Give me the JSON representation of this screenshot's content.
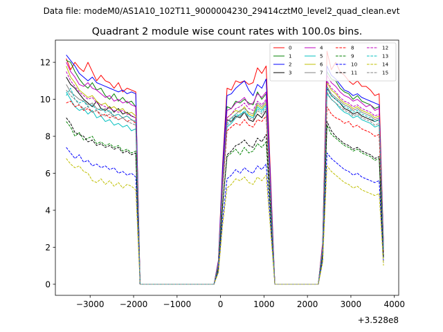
{
  "suptitle": "Data file: modeM0/AS1A10_102T11_9000004230_29414cztM0_level2_quad_clean.evt",
  "chart_data": {
    "type": "line",
    "title": "Quadrant 2 module wise count rates with 100.0s bins.",
    "xlabel": "",
    "ylabel": "",
    "offset_text": "+3.528e8",
    "xlim": [
      -3800,
      4100
    ],
    "ylim": [
      -0.6,
      13.2
    ],
    "x_ticks": [
      -3000,
      -2000,
      -1000,
      0,
      1000,
      2000,
      3000,
      4000
    ],
    "x_tick_labels": [
      "−3000",
      "−2000",
      "−1000",
      "0",
      "1000",
      "2000",
      "3000",
      "4000"
    ],
    "y_ticks": [
      0,
      2,
      4,
      6,
      8,
      10,
      12
    ],
    "y_tick_labels": [
      "0",
      "2",
      "4",
      "6",
      "8",
      "10",
      "12"
    ],
    "grid": false,
    "legend_position": "top-right",
    "segments": [
      {
        "x_start": -3550,
        "x_end": -1950
      },
      {
        "x_start": 150,
        "x_end": 1050
      },
      {
        "x_start": 2450,
        "x_end": 3750
      }
    ],
    "gap_x": [
      -1850,
      -1750,
      -1650,
      -1550,
      -1450,
      -1350,
      -1250,
      -1150,
      -1050,
      -950,
      -850,
      -750,
      -650,
      -550,
      -450,
      -350,
      -250,
      -150,
      1250,
      1350,
      1450,
      1550,
      1650,
      1750,
      1850,
      1950,
      2050,
      2150,
      2250
    ],
    "rise_x": [
      -50,
      50
    ],
    "rise_fraction": [
      0.12,
      0.62
    ],
    "rise2_x": [
      2350
    ],
    "rise2_fraction": [
      0.18
    ],
    "fall_x": [
      3750
    ],
    "fall_value_fraction": 0.22,
    "series": [
      {
        "name": "0",
        "color": "#ff0000",
        "dash": "solid",
        "seg_values": [
          [
            12.2,
            11.6,
            12.0,
            11.7,
            11.5,
            12.0,
            11.5,
            11.0,
            11.3,
            11.0,
            10.9,
            10.6,
            10.9,
            10.4,
            10.6,
            10.5,
            10.4
          ],
          [
            10.6,
            10.5,
            11.0,
            10.9,
            11.0,
            10.8,
            10.9,
            11.7,
            11.4,
            11.8
          ],
          [
            12.6,
            11.6,
            12.0,
            11.5,
            11.3,
            11.0,
            10.8,
            11.0,
            10.7,
            10.7,
            10.5,
            10.2,
            10.3,
            10.1
          ]
        ]
      },
      {
        "name": "1",
        "color": "#008000",
        "dash": "solid",
        "seg_values": [
          [
            12.1,
            12.0,
            11.5,
            11.1,
            10.8,
            10.6,
            10.9,
            10.5,
            10.6,
            10.2,
            10.0,
            10.3,
            9.9,
            10.1,
            9.8,
            9.9,
            9.6
          ],
          [
            9.6,
            9.5,
            9.9,
            9.8,
            10.0,
            9.8,
            9.7,
            10.4,
            10.0,
            10.3
          ],
          [
            11.5,
            11.1,
            11.0,
            10.6,
            10.4,
            10.3,
            10.0,
            10.2,
            9.9,
            9.8,
            9.7,
            9.5,
            9.6,
            9.3
          ]
        ]
      },
      {
        "name": "2",
        "color": "#0000ff",
        "dash": "solid",
        "seg_values": [
          [
            12.4,
            12.1,
            11.8,
            11.4,
            11.2,
            11.0,
            11.2,
            10.9,
            10.8,
            10.7,
            10.6,
            10.5,
            10.4,
            10.5,
            10.3,
            10.4,
            10.3
          ],
          [
            10.2,
            10.3,
            10.6,
            10.8,
            11.0,
            10.5,
            10.2,
            10.8,
            10.6,
            11.1
          ],
          [
            11.8,
            11.3,
            11.1,
            10.8,
            10.5,
            10.4,
            10.2,
            10.3,
            10.1,
            10.0,
            9.9,
            9.8,
            9.7,
            9.4
          ]
        ]
      },
      {
        "name": "3",
        "color": "#000000",
        "dash": "solid",
        "seg_values": [
          [
            11.2,
            10.8,
            10.6,
            10.3,
            10.0,
            9.8,
            9.6,
            9.9,
            9.5,
            9.4,
            9.6,
            9.3,
            9.5,
            9.2,
            9.3,
            9.1,
            9.0
          ],
          [
            8.9,
            8.8,
            9.1,
            9.0,
            9.3,
            8.9,
            8.8,
            9.2,
            9.0,
            9.4
          ],
          [
            10.6,
            10.2,
            10.0,
            9.8,
            9.5,
            9.4,
            9.2,
            9.3,
            9.1,
            9.0,
            8.9,
            8.8,
            8.9,
            8.6
          ]
        ]
      },
      {
        "name": "4",
        "color": "#bf00bf",
        "dash": "solid",
        "seg_values": [
          [
            12.0,
            11.5,
            11.2,
            10.8,
            10.7,
            10.9,
            10.6,
            10.5,
            10.3,
            10.1,
            10.2,
            9.9,
            10.0,
            9.8,
            9.9,
            9.7,
            9.6
          ],
          [
            9.4,
            9.5,
            9.8,
            9.9,
            10.1,
            9.7,
            9.8,
            10.3,
            10.1,
            10.4
          ],
          [
            11.3,
            10.9,
            10.7,
            10.4,
            10.2,
            10.1,
            9.9,
            10.0,
            9.8,
            9.6,
            9.7,
            9.4,
            9.5,
            9.2
          ]
        ]
      },
      {
        "name": "5",
        "color": "#00bfbf",
        "dash": "solid",
        "seg_values": [
          [
            10.4,
            10.0,
            9.6,
            9.4,
            9.5,
            9.2,
            9.4,
            9.0,
            9.1,
            8.8,
            8.9,
            8.6,
            8.7,
            8.5,
            8.6,
            8.3,
            8.4
          ],
          [
            8.5,
            8.7,
            9.0,
            9.2,
            9.3,
            9.1,
            9.0,
            9.6,
            9.4,
            9.7
          ],
          [
            10.3,
            10.0,
            9.8,
            9.5,
            9.3,
            9.2,
            9.0,
            9.1,
            8.9,
            8.8,
            8.7,
            8.5,
            8.6,
            8.3
          ]
        ]
      },
      {
        "name": "6",
        "color": "#bfbf00",
        "dash": "solid",
        "seg_values": [
          [
            11.8,
            11.2,
            10.9,
            10.5,
            10.3,
            10.1,
            10.2,
            9.9,
            9.7,
            9.8,
            9.5,
            9.6,
            9.4,
            9.5,
            9.2,
            9.3,
            9.1
          ],
          [
            9.0,
            9.2,
            9.4,
            9.3,
            9.6,
            9.2,
            9.1,
            9.7,
            9.5,
            9.8
          ],
          [
            10.9,
            10.5,
            10.3,
            10.0,
            9.8,
            9.7,
            9.5,
            9.6,
            9.4,
            9.3,
            9.2,
            9.0,
            9.1,
            8.8
          ]
        ]
      },
      {
        "name": "7",
        "color": "#808080",
        "dash": "solid",
        "seg_values": [
          [
            10.8,
            10.4,
            10.2,
            10.0,
            9.9,
            9.7,
            9.8,
            9.5,
            9.4,
            9.5,
            9.3,
            9.1,
            9.2,
            9.0,
            9.1,
            8.9,
            8.8
          ],
          [
            8.8,
            9.0,
            9.2,
            9.4,
            9.5,
            9.3,
            9.2,
            9.8,
            9.6,
            9.9
          ],
          [
            10.7,
            10.3,
            10.1,
            9.9,
            9.7,
            9.6,
            9.4,
            9.5,
            9.3,
            9.2,
            9.1,
            8.9,
            9.0,
            8.7
          ]
        ]
      },
      {
        "name": "8",
        "color": "#ff0000",
        "dash": "dashed",
        "seg_values": [
          [
            9.8,
            9.9,
            9.6,
            9.7,
            9.4,
            9.5,
            9.3,
            9.4,
            9.1,
            9.2,
            9.0,
            9.1,
            8.9,
            9.0,
            8.8,
            8.9,
            8.7
          ],
          [
            8.3,
            8.5,
            8.7,
            8.6,
            8.9,
            8.6,
            8.5,
            8.9,
            8.8,
            9.1
          ],
          [
            9.6,
            9.2,
            9.0,
            8.9,
            8.7,
            8.8,
            8.5,
            8.6,
            8.4,
            8.3,
            8.2,
            8.0,
            8.1,
            7.8
          ]
        ]
      },
      {
        "name": "9",
        "color": "#008000",
        "dash": "dashed",
        "seg_values": [
          [
            8.8,
            8.5,
            8.0,
            8.2,
            7.8,
            7.9,
            8.0,
            7.6,
            7.7,
            7.5,
            7.6,
            7.4,
            7.5,
            7.2,
            7.3,
            7.1,
            7.2
          ],
          [
            6.9,
            7.1,
            7.3,
            7.0,
            7.4,
            7.1,
            7.2,
            7.6,
            7.4,
            7.7
          ],
          [
            8.6,
            8.1,
            7.9,
            7.7,
            7.5,
            7.4,
            7.2,
            7.3,
            7.1,
            7.0,
            6.9,
            6.7,
            6.8,
            6.5
          ]
        ]
      },
      {
        "name": "10",
        "color": "#0000ff",
        "dash": "dashed",
        "seg_values": [
          [
            7.4,
            7.1,
            6.8,
            7.0,
            6.6,
            6.7,
            6.4,
            6.5,
            6.3,
            6.4,
            6.2,
            6.3,
            6.0,
            6.1,
            5.9,
            6.0,
            5.8
          ],
          [
            5.7,
            5.9,
            6.2,
            6.0,
            6.3,
            6.1,
            6.0,
            6.4,
            6.2,
            6.5
          ],
          [
            7.1,
            6.8,
            6.6,
            6.4,
            6.2,
            6.1,
            5.9,
            6.0,
            5.8,
            5.7,
            5.6,
            5.5,
            5.6,
            5.3
          ]
        ]
      },
      {
        "name": "11",
        "color": "#000000",
        "dash": "dashed",
        "seg_values": [
          [
            9.0,
            8.7,
            8.2,
            8.1,
            8.0,
            7.7,
            7.8,
            7.5,
            7.6,
            7.4,
            7.5,
            7.3,
            7.4,
            7.1,
            7.2,
            7.0,
            7.1
          ],
          [
            7.0,
            7.2,
            7.5,
            7.6,
            7.8,
            7.5,
            7.4,
            7.9,
            7.7,
            8.1
          ],
          [
            8.8,
            8.3,
            8.0,
            7.8,
            7.6,
            7.5,
            7.3,
            7.4,
            7.2,
            7.1,
            7.0,
            6.8,
            6.9,
            6.6
          ]
        ]
      },
      {
        "name": "12",
        "color": "#bf00bf",
        "dash": "dashed",
        "seg_values": [
          [
            11.5,
            11.0,
            10.7,
            10.4,
            10.2,
            10.0,
            10.1,
            9.8,
            9.7,
            9.6,
            9.5,
            9.4,
            9.3,
            9.4,
            9.2,
            9.1,
            9.0
          ],
          [
            9.0,
            9.2,
            9.5,
            9.6,
            9.8,
            9.5,
            9.4,
            9.9,
            9.7,
            10.0
          ],
          [
            11.0,
            10.6,
            10.4,
            10.1,
            9.9,
            9.8,
            9.6,
            9.7,
            9.5,
            9.4,
            9.3,
            9.1,
            9.2,
            8.9
          ]
        ]
      },
      {
        "name": "13",
        "color": "#00bfbf",
        "dash": "dashed",
        "seg_values": [
          [
            10.2,
            10.6,
            10.0,
            9.8,
            9.9,
            9.6,
            9.7,
            9.4,
            9.5,
            9.3,
            9.4,
            9.1,
            9.2,
            9.0,
            9.1,
            8.9,
            8.8
          ],
          [
            8.7,
            8.9,
            9.2,
            9.1,
            9.4,
            9.1,
            9.0,
            9.5,
            9.3,
            9.6
          ],
          [
            10.6,
            10.2,
            10.0,
            9.8,
            9.6,
            9.5,
            9.3,
            9.4,
            9.2,
            9.1,
            9.0,
            8.8,
            8.9,
            8.6
          ]
        ]
      },
      {
        "name": "14",
        "color": "#bfbf00",
        "dash": "dashed",
        "seg_values": [
          [
            6.8,
            6.5,
            6.3,
            6.4,
            6.1,
            6.0,
            5.6,
            5.5,
            5.7,
            5.4,
            5.6,
            5.3,
            5.5,
            5.2,
            5.4,
            5.3,
            5.1
          ],
          [
            5.2,
            5.4,
            5.7,
            5.6,
            5.8,
            5.5,
            5.4,
            5.8,
            5.6,
            5.9
          ],
          [
            6.4,
            6.1,
            5.9,
            5.7,
            5.5,
            5.4,
            5.2,
            5.3,
            5.1,
            5.0,
            4.9,
            4.8,
            4.9,
            4.6
          ]
        ]
      },
      {
        "name": "15",
        "color": "#808080",
        "dash": "dashed",
        "seg_values": [
          [
            10.5,
            10.2,
            10.0,
            9.7,
            9.5,
            9.6,
            9.3,
            9.4,
            9.2,
            9.1,
            9.2,
            9.0,
            8.9,
            9.0,
            8.8,
            8.7,
            8.6
          ],
          [
            8.6,
            8.8,
            9.0,
            9.1,
            9.3,
            9.0,
            8.9,
            9.4,
            9.2,
            9.5
          ],
          [
            10.4,
            10.0,
            9.8,
            9.6,
            9.4,
            9.3,
            9.1,
            9.2,
            9.0,
            8.9,
            8.8,
            8.6,
            8.7,
            8.4
          ]
        ]
      }
    ]
  }
}
